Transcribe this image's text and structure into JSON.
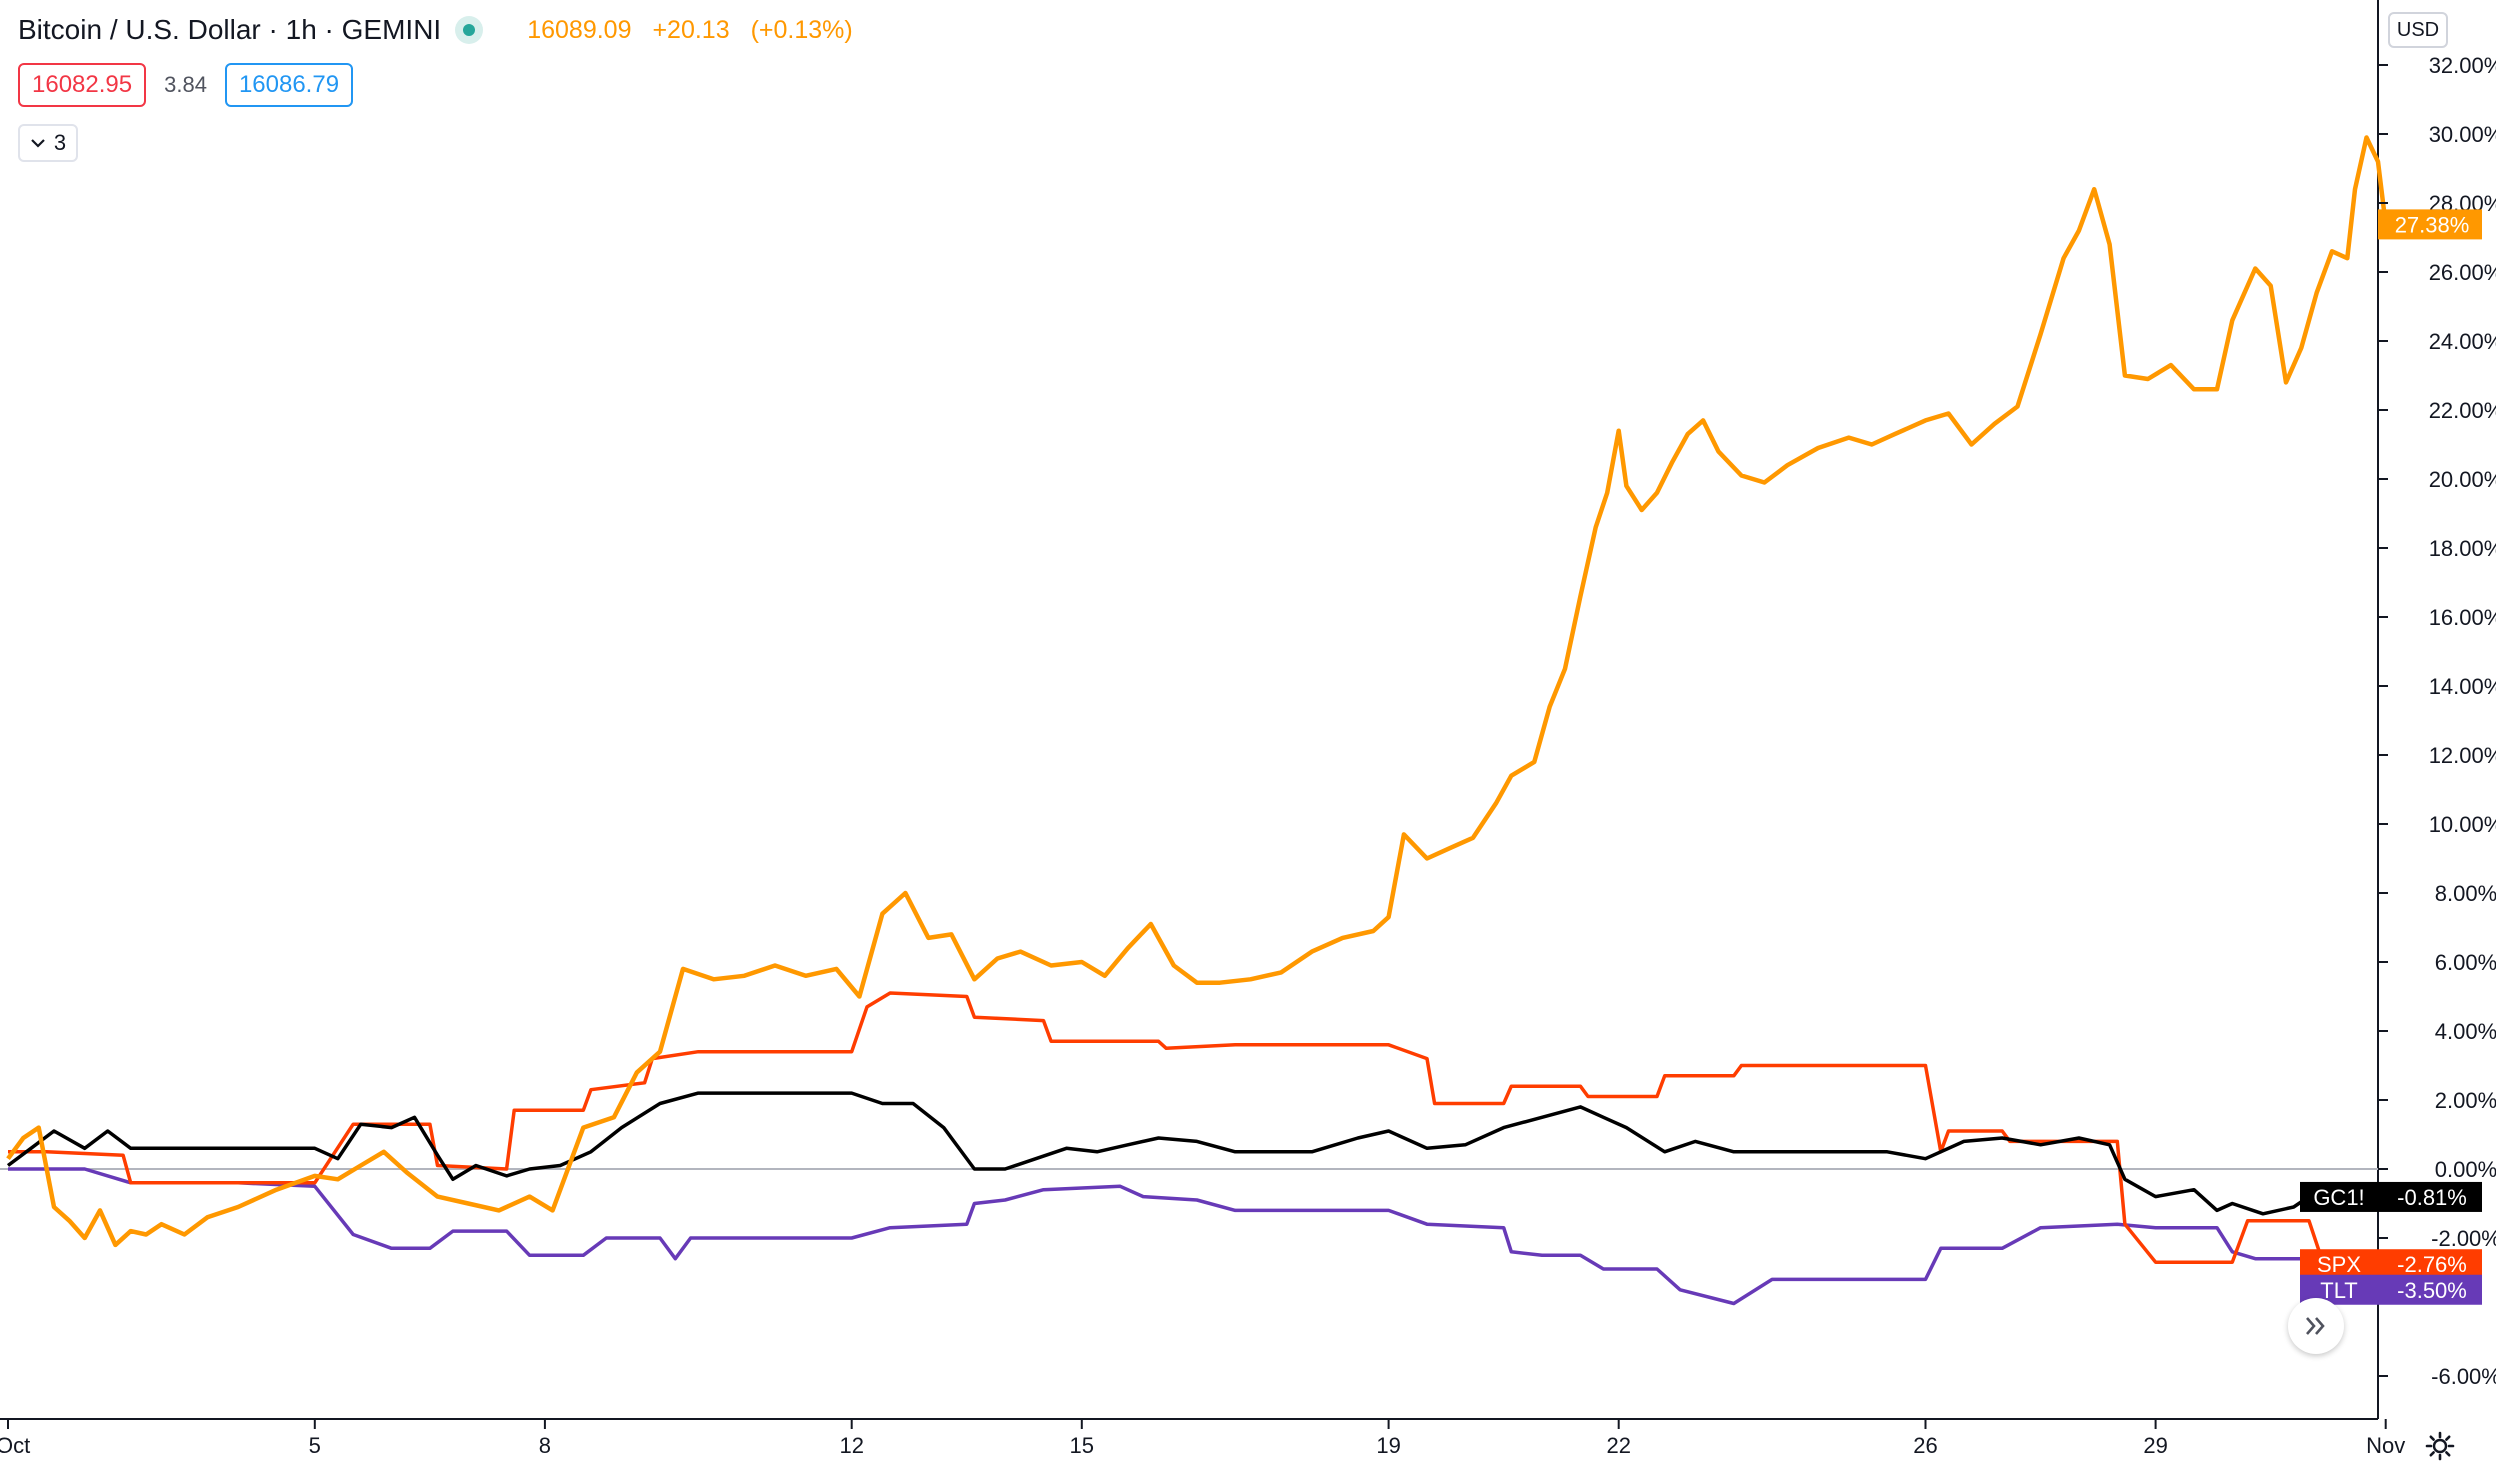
{
  "header": {
    "symbol_title": "Bitcoin / U.S. Dollar · 1h · GEMINI",
    "last_price": "16089.09",
    "change": "+20.13",
    "change_pct": "(+0.13%)"
  },
  "quote": {
    "bid": "16082.95",
    "spread": "3.84",
    "ask": "16086.79"
  },
  "indicators_toggle": {
    "count": "3"
  },
  "currency_button": "USD",
  "icons": {
    "status": "market-open-dot-icon",
    "collapse": "chevron-down-icon",
    "scroll": "double-chevron-right-icon",
    "settings": "gear-icon"
  },
  "colors": {
    "btc": "#ff9800",
    "spx": "#ff3d00",
    "gc": "#000000",
    "tlt": "#673ab7",
    "zero_line": "#b2b5be",
    "axis": "#131722"
  },
  "chart_data": {
    "type": "line",
    "y_unit": "percent change",
    "ylim": [
      -7.2,
      32.5
    ],
    "y_ticks": [
      "32.00%",
      "30.00%",
      "28.00%",
      "26.00%",
      "24.00%",
      "22.00%",
      "20.00%",
      "18.00%",
      "16.00%",
      "14.00%",
      "12.00%",
      "10.00%",
      "8.00%",
      "6.00%",
      "4.00%",
      "2.00%",
      "0.00%",
      "-2.00%",
      "-6.00%"
    ],
    "x_ticks": [
      "Oct",
      "5",
      "8",
      "12",
      "15",
      "19",
      "22",
      "26",
      "29",
      "Nov"
    ],
    "x_tick_days": [
      1,
      5,
      8,
      12,
      15,
      19,
      22,
      26,
      29,
      32
    ],
    "xlim": [
      1,
      32
    ],
    "grid": false,
    "series": [
      {
        "name": "",
        "key": "btc",
        "points": [
          [
            1,
            0.3
          ],
          [
            1.2,
            0.9
          ],
          [
            1.4,
            1.2
          ],
          [
            1.6,
            -1.1
          ],
          [
            1.8,
            -1.5
          ],
          [
            2.0,
            -2.0
          ],
          [
            2.2,
            -1.2
          ],
          [
            2.4,
            -2.2
          ],
          [
            2.6,
            -1.8
          ],
          [
            2.8,
            -1.9
          ],
          [
            3.0,
            -1.6
          ],
          [
            3.3,
            -1.9
          ],
          [
            3.6,
            -1.4
          ],
          [
            4.0,
            -1.1
          ],
          [
            4.5,
            -0.6
          ],
          [
            5.0,
            -0.2
          ],
          [
            5.3,
            -0.3
          ],
          [
            5.6,
            0.1
          ],
          [
            5.9,
            0.5
          ],
          [
            6.2,
            -0.1
          ],
          [
            6.6,
            -0.8
          ],
          [
            7.0,
            -1.0
          ],
          [
            7.4,
            -1.2
          ],
          [
            7.8,
            -0.8
          ],
          [
            8.1,
            -1.2
          ],
          [
            8.5,
            1.2
          ],
          [
            8.9,
            1.5
          ],
          [
            9.2,
            2.8
          ],
          [
            9.5,
            3.4
          ],
          [
            9.8,
            5.8
          ],
          [
            10.2,
            5.5
          ],
          [
            10.6,
            5.6
          ],
          [
            11.0,
            5.9
          ],
          [
            11.4,
            5.6
          ],
          [
            11.8,
            5.8
          ],
          [
            12.1,
            5.0
          ],
          [
            12.4,
            7.4
          ],
          [
            12.7,
            8.0
          ],
          [
            13.0,
            6.7
          ],
          [
            13.3,
            6.8
          ],
          [
            13.6,
            5.5
          ],
          [
            13.9,
            6.1
          ],
          [
            14.2,
            6.3
          ],
          [
            14.6,
            5.9
          ],
          [
            15.0,
            6.0
          ],
          [
            15.3,
            5.6
          ],
          [
            15.6,
            6.4
          ],
          [
            15.9,
            7.1
          ],
          [
            16.2,
            5.9
          ],
          [
            16.5,
            5.4
          ],
          [
            16.8,
            5.4
          ],
          [
            17.2,
            5.5
          ],
          [
            17.6,
            5.7
          ],
          [
            18.0,
            6.3
          ],
          [
            18.4,
            6.7
          ],
          [
            18.8,
            6.9
          ],
          [
            19.0,
            7.3
          ],
          [
            19.2,
            9.7
          ],
          [
            19.5,
            9.0
          ],
          [
            19.8,
            9.3
          ],
          [
            20.1,
            9.6
          ],
          [
            20.4,
            10.6
          ],
          [
            20.6,
            11.4
          ],
          [
            20.9,
            11.8
          ],
          [
            21.1,
            13.4
          ],
          [
            21.3,
            14.5
          ],
          [
            21.5,
            16.6
          ],
          [
            21.7,
            18.6
          ],
          [
            21.85,
            19.6
          ],
          [
            22.0,
            21.4
          ],
          [
            22.1,
            19.8
          ],
          [
            22.3,
            19.1
          ],
          [
            22.5,
            19.6
          ],
          [
            22.7,
            20.5
          ],
          [
            22.9,
            21.3
          ],
          [
            23.1,
            21.7
          ],
          [
            23.3,
            20.8
          ],
          [
            23.6,
            20.1
          ],
          [
            23.9,
            19.9
          ],
          [
            24.2,
            20.4
          ],
          [
            24.6,
            20.9
          ],
          [
            25.0,
            21.2
          ],
          [
            25.3,
            21.0
          ],
          [
            25.6,
            21.3
          ],
          [
            26.0,
            21.7
          ],
          [
            26.3,
            21.9
          ],
          [
            26.6,
            21.0
          ],
          [
            26.9,
            21.6
          ],
          [
            27.2,
            22.1
          ],
          [
            27.5,
            24.2
          ],
          [
            27.8,
            26.4
          ],
          [
            28.0,
            27.2
          ],
          [
            28.2,
            28.4
          ],
          [
            28.4,
            26.8
          ],
          [
            28.6,
            23.0
          ],
          [
            28.9,
            22.9
          ],
          [
            29.2,
            23.3
          ],
          [
            29.5,
            22.6
          ],
          [
            29.8,
            22.6
          ],
          [
            30.0,
            24.6
          ],
          [
            30.3,
            26.1
          ],
          [
            30.5,
            25.6
          ],
          [
            30.7,
            22.8
          ],
          [
            30.9,
            23.8
          ],
          [
            31.1,
            25.4
          ],
          [
            31.3,
            26.6
          ],
          [
            31.5,
            26.4
          ],
          [
            31.6,
            28.4
          ],
          [
            31.75,
            29.9
          ],
          [
            31.9,
            29.2
          ],
          [
            32.0,
            27.38
          ]
        ]
      },
      {
        "name": "SPX",
        "key": "spx",
        "points": [
          [
            1,
            0.5
          ],
          [
            1.5,
            0.5
          ],
          [
            2.5,
            0.4
          ],
          [
            2.6,
            -0.4
          ],
          [
            5.0,
            -0.4
          ],
          [
            5.5,
            1.3
          ],
          [
            6.5,
            1.3
          ],
          [
            6.6,
            0.1
          ],
          [
            7.5,
            0.0
          ],
          [
            7.6,
            1.7
          ],
          [
            8.5,
            1.7
          ],
          [
            8.6,
            2.3
          ],
          [
            9.3,
            2.5
          ],
          [
            9.4,
            3.2
          ],
          [
            10.0,
            3.4
          ],
          [
            12.0,
            3.4
          ],
          [
            12.2,
            4.7
          ],
          [
            12.5,
            5.1
          ],
          [
            13.5,
            5.0
          ],
          [
            13.6,
            4.4
          ],
          [
            14.5,
            4.3
          ],
          [
            14.6,
            3.7
          ],
          [
            16.0,
            3.7
          ],
          [
            16.1,
            3.5
          ],
          [
            17.0,
            3.6
          ],
          [
            19.0,
            3.6
          ],
          [
            19.5,
            3.2
          ],
          [
            19.6,
            1.9
          ],
          [
            20.5,
            1.9
          ],
          [
            20.6,
            2.4
          ],
          [
            21.5,
            2.4
          ],
          [
            21.6,
            2.1
          ],
          [
            22.5,
            2.1
          ],
          [
            22.6,
            2.7
          ],
          [
            23.5,
            2.7
          ],
          [
            23.6,
            3.0
          ],
          [
            26.0,
            3.0
          ],
          [
            26.2,
            0.5
          ],
          [
            26.3,
            1.1
          ],
          [
            27.0,
            1.1
          ],
          [
            27.1,
            0.8
          ],
          [
            28.5,
            0.8
          ],
          [
            28.6,
            -1.6
          ],
          [
            29.0,
            -2.7
          ],
          [
            30.0,
            -2.7
          ],
          [
            30.2,
            -1.5
          ],
          [
            31.0,
            -1.5
          ],
          [
            31.3,
            -3.5
          ],
          [
            31.5,
            -2.76
          ],
          [
            32.0,
            -2.76
          ]
        ]
      },
      {
        "name": "GC1!",
        "key": "gc",
        "points": [
          [
            1,
            0.1
          ],
          [
            1.3,
            0.6
          ],
          [
            1.6,
            1.1
          ],
          [
            2.0,
            0.6
          ],
          [
            2.3,
            1.1
          ],
          [
            2.6,
            0.6
          ],
          [
            3.0,
            0.6
          ],
          [
            4.0,
            0.6
          ],
          [
            5.0,
            0.6
          ],
          [
            5.3,
            0.3
          ],
          [
            5.6,
            1.3
          ],
          [
            6.0,
            1.2
          ],
          [
            6.3,
            1.5
          ],
          [
            6.6,
            0.4
          ],
          [
            6.8,
            -0.3
          ],
          [
            7.1,
            0.1
          ],
          [
            7.5,
            -0.2
          ],
          [
            7.8,
            0.0
          ],
          [
            8.2,
            0.1
          ],
          [
            8.6,
            0.5
          ],
          [
            9.0,
            1.2
          ],
          [
            9.5,
            1.9
          ],
          [
            10.0,
            2.2
          ],
          [
            11.0,
            2.2
          ],
          [
            12.0,
            2.2
          ],
          [
            12.4,
            1.9
          ],
          [
            12.8,
            1.9
          ],
          [
            13.2,
            1.2
          ],
          [
            13.6,
            0.0
          ],
          [
            14.0,
            0.0
          ],
          [
            14.4,
            0.3
          ],
          [
            14.8,
            0.6
          ],
          [
            15.2,
            0.5
          ],
          [
            15.6,
            0.7
          ],
          [
            16.0,
            0.9
          ],
          [
            16.5,
            0.8
          ],
          [
            17.0,
            0.5
          ],
          [
            18.0,
            0.5
          ],
          [
            18.6,
            0.9
          ],
          [
            19.0,
            1.1
          ],
          [
            19.5,
            0.6
          ],
          [
            20.0,
            0.7
          ],
          [
            20.5,
            1.2
          ],
          [
            21.0,
            1.5
          ],
          [
            21.5,
            1.8
          ],
          [
            21.8,
            1.5
          ],
          [
            22.1,
            1.2
          ],
          [
            22.6,
            0.5
          ],
          [
            23.0,
            0.8
          ],
          [
            23.5,
            0.5
          ],
          [
            24.5,
            0.5
          ],
          [
            25.5,
            0.5
          ],
          [
            26.0,
            0.3
          ],
          [
            26.5,
            0.8
          ],
          [
            27.0,
            0.9
          ],
          [
            27.5,
            0.7
          ],
          [
            28.0,
            0.9
          ],
          [
            28.4,
            0.7
          ],
          [
            28.6,
            -0.3
          ],
          [
            29.0,
            -0.8
          ],
          [
            29.5,
            -0.6
          ],
          [
            29.8,
            -1.2
          ],
          [
            30.0,
            -1.0
          ],
          [
            30.4,
            -1.3
          ],
          [
            30.8,
            -1.1
          ],
          [
            31.2,
            -0.5
          ],
          [
            31.5,
            -0.81
          ],
          [
            32.0,
            -0.81
          ]
        ]
      },
      {
        "name": "TLT",
        "key": "tlt",
        "points": [
          [
            1,
            0.0
          ],
          [
            2.0,
            0.0
          ],
          [
            2.6,
            -0.4
          ],
          [
            4.0,
            -0.4
          ],
          [
            5.0,
            -0.5
          ],
          [
            5.5,
            -1.9
          ],
          [
            6.0,
            -2.3
          ],
          [
            6.5,
            -2.3
          ],
          [
            6.8,
            -1.8
          ],
          [
            7.5,
            -1.8
          ],
          [
            7.8,
            -2.5
          ],
          [
            8.5,
            -2.5
          ],
          [
            8.8,
            -2.0
          ],
          [
            9.5,
            -2.0
          ],
          [
            9.7,
            -2.6
          ],
          [
            9.9,
            -2.0
          ],
          [
            12.0,
            -2.0
          ],
          [
            12.5,
            -1.7
          ],
          [
            13.5,
            -1.6
          ],
          [
            13.6,
            -1.0
          ],
          [
            14.0,
            -0.9
          ],
          [
            14.5,
            -0.6
          ],
          [
            15.5,
            -0.5
          ],
          [
            15.8,
            -0.8
          ],
          [
            16.5,
            -0.9
          ],
          [
            17.0,
            -1.2
          ],
          [
            19.0,
            -1.2
          ],
          [
            19.5,
            -1.6
          ],
          [
            20.5,
            -1.7
          ],
          [
            20.6,
            -2.4
          ],
          [
            21.0,
            -2.5
          ],
          [
            21.5,
            -2.5
          ],
          [
            21.8,
            -2.9
          ],
          [
            22.5,
            -2.9
          ],
          [
            22.8,
            -3.5
          ],
          [
            23.5,
            -3.9
          ],
          [
            24.0,
            -3.2
          ],
          [
            25.0,
            -3.2
          ],
          [
            26.0,
            -3.2
          ],
          [
            26.2,
            -2.3
          ],
          [
            27.0,
            -2.3
          ],
          [
            27.5,
            -1.7
          ],
          [
            28.5,
            -1.6
          ],
          [
            29.0,
            -1.7
          ],
          [
            29.8,
            -1.7
          ],
          [
            30.0,
            -2.4
          ],
          [
            30.3,
            -2.6
          ],
          [
            31.0,
            -2.6
          ],
          [
            31.3,
            -3.0
          ],
          [
            31.5,
            -3.5
          ],
          [
            32.0,
            -3.5
          ]
        ]
      }
    ],
    "last_value_tags": [
      {
        "key": "btc",
        "label": "",
        "value": "27.38%"
      },
      {
        "key": "gc",
        "label": "GC1!",
        "value": "-0.81%"
      },
      {
        "key": "spx",
        "label": "SPX",
        "value": "-2.76%"
      },
      {
        "key": "tlt",
        "label": "TLT",
        "value": "-3.50%"
      }
    ]
  }
}
